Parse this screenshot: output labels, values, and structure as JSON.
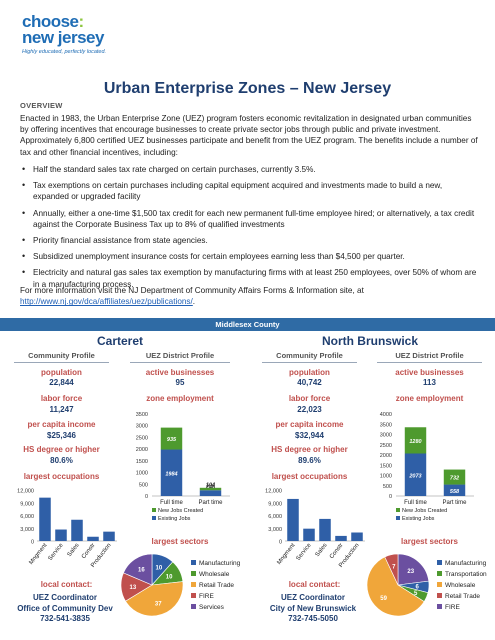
{
  "logo": {
    "line1": "choose",
    "line2": "new jersey",
    "tagline": "Highly educated, perfectly located."
  },
  "title": "Urban Enterprise Zones – New Jersey",
  "overview_heading": "OVERVIEW",
  "intro": "Enacted in 1983, the Urban Enterprise Zone (UEZ) program fosters economic revitalization in designated urban communities by offering incentives that encourage businesses to create private sector jobs through public and private investment. Approximately 6,800 certified UEZ businesses participate and benefit from the UEZ program. The benefits include a number of tax and other financial incentives, including:",
  "bullets": [
    "Half the standard sales tax rate charged on certain purchases, currently 3.5%.",
    "Tax exemptions on certain purchases including capital equipment acquired and investments made to build a new, expanded or upgraded facility",
    "Annually, either a one-time $1,500 tax credit for each new permanent full-time employee hired; or alternatively, a tax credit against the Corporate Business Tax up to 8% of qualified investments",
    "Priority financial assistance from state agencies.",
    "Subsidized unemployment insurance costs for certain employees earning less than $4,500 per quarter.",
    "Electricity and natural gas sales tax exemption by manufacturing firms with at least 250 employees, over 50% of whom are in a manufacturing process."
  ],
  "more_info": "For more information visit the NJ Department of Community Affairs Forms & Information site, at",
  "more_link": "http://www.nj.gov/dca/affiliates/uez/publications/",
  "more_link_suffix": ".",
  "county": "Middlesex County",
  "colors": {
    "dark_blue": "#1f3e6f",
    "bar_blue": "#2f6ba5",
    "red": "#c0504d",
    "green": "#4e9a2e"
  },
  "municipalities": [
    {
      "name": "Carteret",
      "community_heading": "Community Profile",
      "district_heading": "UEZ District Profile",
      "population_label": "population",
      "population": "22,844",
      "labor_label": "labor force",
      "labor": "11,247",
      "income_label": "per capita income",
      "income": "$25,346",
      "hs_label": "HS degree or higher",
      "hs": "80.6%",
      "occupations_label": "largest occupations",
      "active_label": "active businesses",
      "active": "95",
      "employment_label": "zone employment",
      "sectors_label": "largest sectors",
      "contact_label": "local contact:",
      "contact_lines": [
        "UEZ Coordinator",
        "Office of Community Dev",
        "732-541-3835"
      ]
    },
    {
      "name": "North Brunswick",
      "community_heading": "Community Profile",
      "district_heading": "UEZ District Profile",
      "population_label": "population",
      "population": "40,742",
      "labor_label": "labor force",
      "labor": "22,023",
      "income_label": "per capita income",
      "income": "$32,944",
      "hs_label": "HS degree or higher",
      "hs": "89.6%",
      "occupations_label": "largest occupations",
      "active_label": "active businesses",
      "active": "113",
      "employment_label": "zone employment",
      "sectors_label": "largest sectors",
      "contact_label": "local contact:",
      "contact_lines": [
        "UEZ Coordinator",
        "City of New Brunswick",
        "732-745-5050"
      ]
    }
  ],
  "chart_data": [
    {
      "id": "carteret-occupations",
      "type": "bar",
      "categories": [
        "Mngment",
        "Service",
        "Sales",
        "Constr",
        "Production"
      ],
      "values": [
        10200,
        2700,
        5000,
        1000,
        2200
      ],
      "ylim": [
        0,
        12000
      ],
      "yticks": [
        "0",
        "3,000",
        "6,000",
        "9,000",
        "12,000"
      ],
      "ytick_values": [
        0,
        3000,
        6000,
        9000,
        12000
      ]
    },
    {
      "id": "carteret-employment",
      "type": "bar",
      "categories": [
        "Full time",
        "Part time"
      ],
      "series": [
        {
          "name": "Existing Jobs",
          "values": [
            1984,
            246
          ],
          "labels": [
            "1984",
            "246"
          ],
          "color": "#2f5fa7"
        },
        {
          "name": "New Jobs Created",
          "values": [
            935,
            104
          ],
          "labels": [
            "935",
            "104"
          ],
          "color": "#4e9a2e"
        }
      ],
      "ylim": [
        0,
        3500
      ],
      "yticks": [
        "0",
        "500",
        "1000",
        "1500",
        "2000",
        "2500",
        "3000",
        "3500"
      ],
      "ytick_values": [
        0,
        500,
        1000,
        1500,
        2000,
        2500,
        3000,
        3500
      ],
      "legend_position": "bottom"
    },
    {
      "id": "carteret-sectors",
      "type": "pie",
      "labels": [
        "Manufacturing",
        "Wholesale",
        "Retail Trade",
        "FIRE",
        "Services"
      ],
      "values": [
        10,
        10,
        37,
        13,
        16
      ],
      "value_labels": [
        "10",
        "10",
        "37",
        "13",
        "16"
      ],
      "colors": [
        "#2f5fa7",
        "#4e9a2e",
        "#f0a63a",
        "#c0504d",
        "#6b4fa0"
      ],
      "legend_position": "right"
    },
    {
      "id": "northbrunswick-occupations",
      "type": "bar",
      "categories": [
        "Mngment",
        "Service",
        "Sales",
        "Constr",
        "Production"
      ],
      "values": [
        9900,
        2900,
        5200,
        1200,
        2000
      ],
      "ylim": [
        0,
        12000
      ],
      "yticks": [
        "0",
        "3,000",
        "6,000",
        "9,000",
        "12,000"
      ],
      "ytick_values": [
        0,
        3000,
        6000,
        9000,
        12000
      ]
    },
    {
      "id": "northbrunswick-employment",
      "type": "bar",
      "categories": [
        "Full time",
        "Part time"
      ],
      "series": [
        {
          "name": "Existing Jobs",
          "values": [
            2073,
            558
          ],
          "labels": [
            "2073",
            "558"
          ],
          "color": "#2f5fa7"
        },
        {
          "name": "New Jobs Created",
          "values": [
            1280,
            732
          ],
          "labels": [
            "1280",
            "732"
          ],
          "color": "#4e9a2e"
        }
      ],
      "ylim": [
        0,
        4000
      ],
      "yticks": [
        "0",
        "500",
        "1000",
        "1500",
        "2000",
        "2500",
        "3000",
        "3500",
        "4000"
      ],
      "ytick_values": [
        0,
        500,
        1000,
        1500,
        2000,
        2500,
        3000,
        3500,
        4000
      ],
      "legend_position": "bottom"
    },
    {
      "id": "northbrunswick-sectors",
      "type": "pie",
      "labels": [
        "Manufacturing",
        "Transportation",
        "Wholesale",
        "Retail Trade",
        "FIRE"
      ],
      "values": [
        23,
        6,
        5,
        59,
        7
      ],
      "value_labels": [
        "23",
        "6",
        "5",
        "59",
        "7"
      ],
      "colors": [
        "#2f5fa7",
        "#4e9a2e",
        "#f0a63a",
        "#c0504d",
        "#6b4fa0"
      ],
      "pie_colors": [
        "#6b4fa0",
        "#2f5fa7",
        "#4e9a2e",
        "#f0a63a",
        "#c0504d"
      ],
      "legend_position": "right"
    }
  ]
}
